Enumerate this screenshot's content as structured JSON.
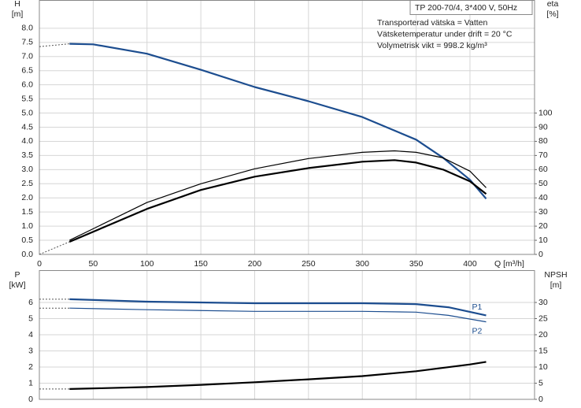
{
  "chart_data": [
    {
      "type": "line",
      "title": "TP 200-70/4, 3*400 V, 50Hz",
      "annotations": [
        "Transporterad vätska = Vatten",
        "Vätsketemperatur under drift = 20 °C",
        "Volymetrisk vikt = 998.2 kg/m³"
      ],
      "xlabel": "Q [m³/h]",
      "ylabel": [
        "H",
        "[m]"
      ],
      "y2label": [
        "eta",
        "[%]"
      ],
      "xlim": [
        0,
        460
      ],
      "xticks": [
        0,
        50,
        100,
        150,
        200,
        250,
        300,
        350,
        400
      ],
      "show_xtick_labels": true,
      "ylim": [
        0,
        9
      ],
      "yticks": [
        {
          "value": 0,
          "label": "0.0"
        },
        0.5,
        {
          "value": 1,
          "label": "1.0"
        },
        1.5,
        {
          "value": 2,
          "label": "2.0"
        },
        2.5,
        {
          "value": 3,
          "label": "3.0"
        },
        3.5,
        {
          "value": 4,
          "label": "4.0"
        },
        4.5,
        {
          "value": 5,
          "label": "5.0"
        },
        5.5,
        {
          "value": 6,
          "label": "6.0"
        },
        6.5,
        {
          "value": 7,
          "label": "7.0"
        },
        7.5,
        {
          "value": 8,
          "label": "8.0"
        }
      ],
      "y2lim": [
        0,
        180
      ],
      "y2ticks": [
        0,
        10,
        20,
        30,
        40,
        50,
        60,
        70,
        80,
        90,
        100
      ],
      "grid": true,
      "series": [
        {
          "color": "#1c4d8f",
          "style": "thick",
          "x": [
            28,
            50,
            100,
            150,
            200,
            250,
            300,
            350,
            375,
            400,
            415
          ],
          "values": [
            7.45,
            7.43,
            7.1,
            6.53,
            5.92,
            5.42,
            4.86,
            4.06,
            3.42,
            2.64,
            1.97
          ]
        },
        {
          "color": "#555555",
          "style": "dotted",
          "x": [
            0,
            28
          ],
          "values": [
            7.35,
            7.45
          ]
        },
        {
          "color": "#000000",
          "style": "thin",
          "axis": "y2",
          "x": [
            28,
            100,
            150,
            200,
            250,
            300,
            330,
            350,
            375,
            400,
            415
          ],
          "values": [
            10,
            36.7,
            50,
            60.6,
            67.8,
            72.2,
            73.3,
            72.2,
            68.3,
            58.9,
            47.2
          ]
        },
        {
          "color": "#000000",
          "style": "thick",
          "axis": "y2",
          "x": [
            28,
            100,
            150,
            200,
            250,
            300,
            330,
            350,
            375,
            400,
            415
          ],
          "values": [
            8.9,
            32.2,
            45.6,
            55,
            61.1,
            65.6,
            66.7,
            65,
            60,
            51.7,
            42.8
          ]
        },
        {
          "color": "#555555",
          "style": "dotted",
          "axis": "y2",
          "x": [
            0,
            28
          ],
          "values": [
            0,
            8.9
          ]
        }
      ]
    },
    {
      "type": "line",
      "ylabel": [
        "P",
        "[kW]"
      ],
      "y2label": [
        "NPSH",
        "[m]"
      ],
      "xlim": [
        0,
        460
      ],
      "xticks": [
        0,
        50,
        100,
        150,
        200,
        250,
        300,
        350,
        400
      ],
      "show_xtick_labels": false,
      "ylim": [
        0,
        8
      ],
      "yticks": [
        0,
        1,
        2,
        3,
        4,
        5,
        6
      ],
      "y2lim": [
        0,
        40
      ],
      "y2ticks": [
        0,
        5,
        10,
        15,
        20,
        25,
        30
      ],
      "grid": true,
      "series": [
        {
          "name": "P1",
          "name_position": "above",
          "color": "#1c4d8f",
          "style": "thick",
          "x": [
            28,
            100,
            200,
            300,
            350,
            380,
            415
          ],
          "values": [
            6.2,
            6.05,
            5.95,
            5.95,
            5.9,
            5.7,
            5.2
          ]
        },
        {
          "color": "#555555",
          "style": "dotted",
          "x": [
            0,
            28
          ],
          "values": [
            6.2,
            6.2
          ]
        },
        {
          "name": "P2",
          "name_position": "below",
          "color": "#1c4d8f",
          "style": "thin",
          "x": [
            28,
            100,
            200,
            300,
            350,
            380,
            415
          ],
          "values": [
            5.65,
            5.55,
            5.45,
            5.45,
            5.4,
            5.2,
            4.8
          ]
        },
        {
          "color": "#555555",
          "style": "dotted",
          "x": [
            0,
            28
          ],
          "values": [
            5.65,
            5.65
          ]
        },
        {
          "color": "#000000",
          "style": "thick",
          "axis": "y2",
          "x": [
            28,
            100,
            150,
            200,
            250,
            300,
            350,
            400,
            415
          ],
          "values": [
            3.2,
            3.8,
            4.5,
            5.3,
            6.2,
            7.2,
            8.7,
            10.8,
            11.6
          ]
        },
        {
          "color": "#555555",
          "style": "dotted",
          "axis": "y2",
          "x": [
            0,
            28
          ],
          "values": [
            3.2,
            3.2
          ]
        }
      ]
    }
  ]
}
